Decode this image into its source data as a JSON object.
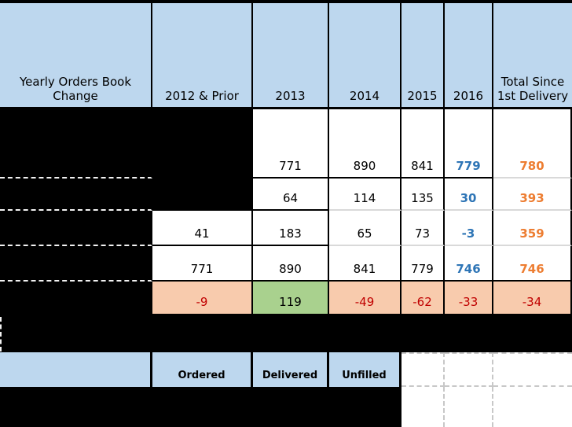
{
  "header": {
    "title": "Yearly Orders Book Change",
    "cols": [
      "2012 & Prior",
      "2013",
      "2014",
      "2015",
      "2016",
      "Total Since 1st Delivery"
    ]
  },
  "rows": [
    [
      "",
      "771",
      "890",
      "841",
      "779",
      "780"
    ],
    [
      "",
      "64",
      "114",
      "135",
      "30",
      "393"
    ],
    [
      "41",
      "183",
      "65",
      "73",
      "-3",
      "359"
    ],
    [
      "771",
      "890",
      "841",
      "779",
      "746",
      "746"
    ],
    [
      "-9",
      "119",
      "-49",
      "-62",
      "-33",
      "-34"
    ]
  ],
  "footer": {
    "labels": [
      "Ordered",
      "Delivered",
      "Unfilled"
    ]
  },
  "colors": {
    "header_fill": "#BDD7EE",
    "negative_fill": "#F8CBAD",
    "positive_fill": "#A9D18E",
    "year2016_text": "#2E75B6",
    "total_text": "#ED7D31",
    "negative_text": "#C00000",
    "redacted_fill": "#000000"
  },
  "chart_data": {
    "type": "table",
    "title": "Yearly Orders Book Change",
    "columns": [
      "2012 & Prior",
      "2013",
      "2014",
      "2015",
      "2016",
      "Total Since 1st Delivery"
    ],
    "rows": [
      {
        "label": "",
        "values": [
          null,
          771,
          890,
          841,
          779,
          780
        ]
      },
      {
        "label": "",
        "values": [
          null,
          64,
          114,
          135,
          30,
          393
        ]
      },
      {
        "label": "",
        "values": [
          41,
          183,
          65,
          73,
          -3,
          359
        ]
      },
      {
        "label": "",
        "values": [
          771,
          890,
          841,
          779,
          746,
          746
        ]
      },
      {
        "label": "",
        "values": [
          -9,
          119,
          -49,
          -62,
          -33,
          -34
        ]
      }
    ],
    "notes": "Row labels are redacted (black). Last row: negative values on orange fill, positive value 119 on green fill. 2016 column in blue bold, Total column in orange bold.",
    "footer_legend": [
      "Ordered",
      "Delivered",
      "Unfilled"
    ]
  }
}
